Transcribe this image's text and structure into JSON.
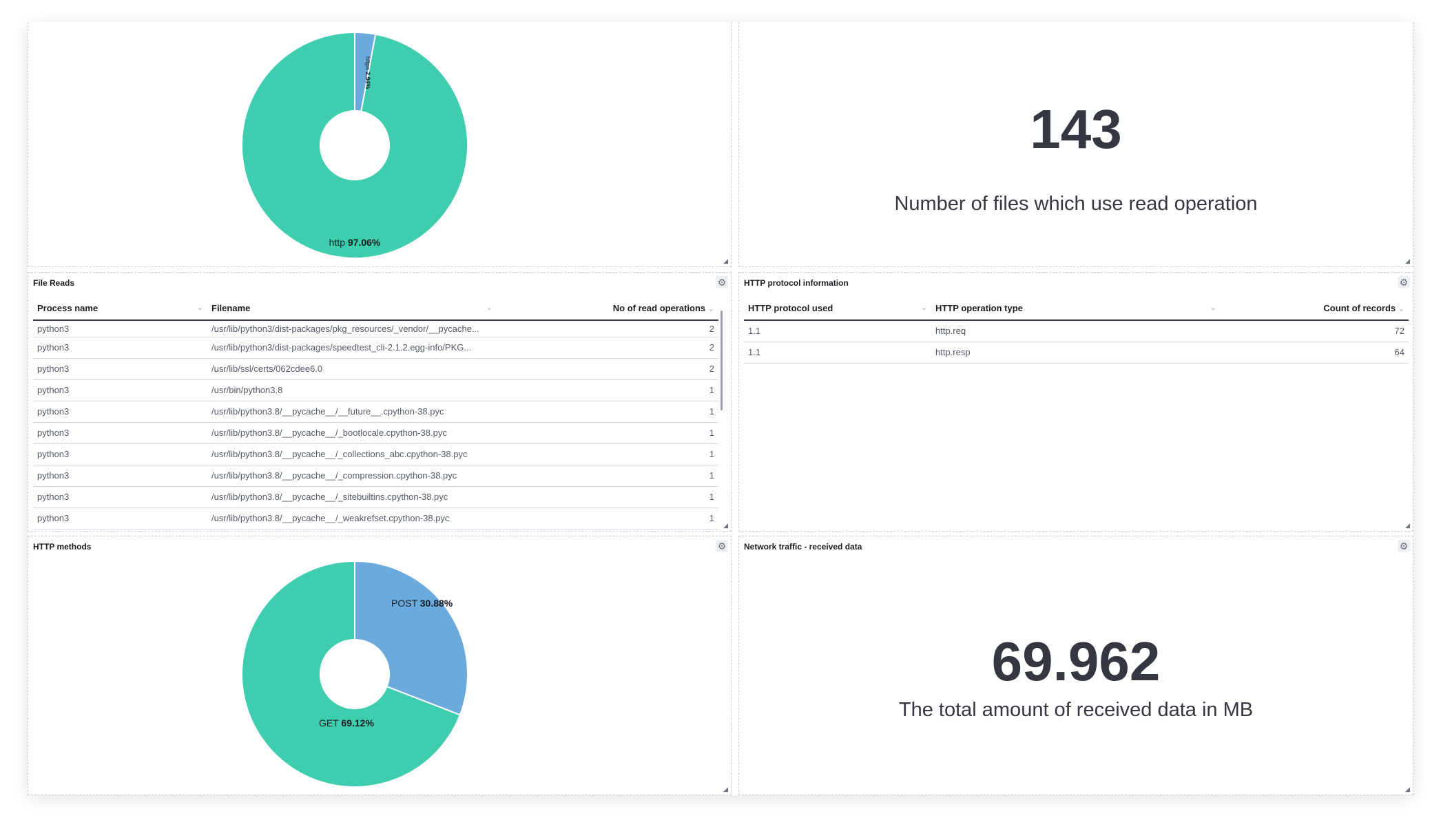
{
  "panels": {
    "protocol_pie": {
      "chart_data": {
        "type": "pie",
        "donut": true,
        "slices": [
          {
            "label": "https",
            "value": 2.94,
            "color": "#6aaadd"
          },
          {
            "label": "http",
            "value": 97.06,
            "color": "#3fcdb0"
          }
        ]
      },
      "labels": {
        "https": "https",
        "https_pct": "2.94%",
        "http": "http",
        "http_pct": "97.06%"
      }
    },
    "files_metric": {
      "value": "143",
      "label": "Number of files which use read operation"
    },
    "file_reads": {
      "title": "File Reads",
      "columns": [
        "Process name",
        "Filename",
        "No of read operations"
      ],
      "rows": [
        [
          "python3",
          "/usr/lib/python3/dist-packages/pkg_resources/_vendor/__pycache...",
          "2"
        ],
        [
          "python3",
          "/usr/lib/python3/dist-packages/speedtest_cli-2.1.2.egg-info/PKG...",
          "2"
        ],
        [
          "python3",
          "/usr/lib/ssl/certs/062cdee6.0",
          "2"
        ],
        [
          "python3",
          "/usr/bin/python3.8",
          "1"
        ],
        [
          "python3",
          "/usr/lib/python3.8/__pycache__/__future__.cpython-38.pyc",
          "1"
        ],
        [
          "python3",
          "/usr/lib/python3.8/__pycache__/_bootlocale.cpython-38.pyc",
          "1"
        ],
        [
          "python3",
          "/usr/lib/python3.8/__pycache__/_collections_abc.cpython-38.pyc",
          "1"
        ],
        [
          "python3",
          "/usr/lib/python3.8/__pycache__/_compression.cpython-38.pyc",
          "1"
        ],
        [
          "python3",
          "/usr/lib/python3.8/__pycache__/_sitebuiltins.cpython-38.pyc",
          "1"
        ],
        [
          "python3",
          "/usr/lib/python3.8/__pycache__/_weakrefset.cpython-38.pyc",
          "1"
        ]
      ]
    },
    "http_protocol": {
      "title": "HTTP protocol information",
      "columns": [
        "HTTP protocol used",
        "HTTP operation type",
        "Count of records"
      ],
      "rows": [
        [
          "1.1",
          "http.req",
          "72"
        ],
        [
          "1.1",
          "http.resp",
          "64"
        ]
      ]
    },
    "http_methods": {
      "title": "HTTP methods",
      "chart_data": {
        "type": "pie",
        "donut": true,
        "slices": [
          {
            "label": "POST",
            "value": 30.88,
            "color": "#6aaadd"
          },
          {
            "label": "GET",
            "value": 69.12,
            "color": "#3fcdb0"
          }
        ]
      },
      "labels": {
        "post": "POST",
        "post_pct": "30.88%",
        "get": "GET",
        "get_pct": "69.12%"
      }
    },
    "received_metric": {
      "title": "Network traffic - received data",
      "value": "69.962",
      "label": "The total amount of received data in MB"
    }
  }
}
